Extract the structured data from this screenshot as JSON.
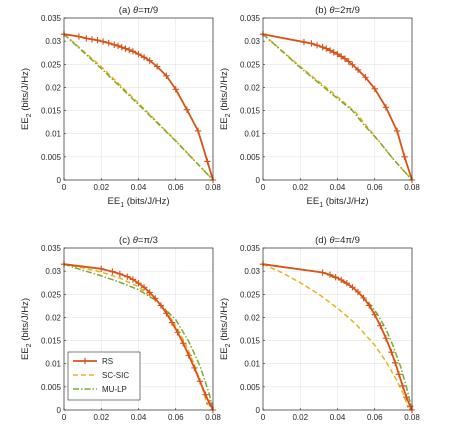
{
  "legend": {
    "entries": [
      {
        "name": "RS",
        "color": "#D95319",
        "dash": "solid",
        "marker": "plus"
      },
      {
        "name": "SC-SIC",
        "color": "#EDB120",
        "dash": "dashed",
        "marker": "none"
      },
      {
        "name": "MU-LP",
        "color": "#77AC30",
        "dash": "dashdot",
        "marker": "none"
      }
    ],
    "placement": "lower-left of panel (c)"
  },
  "chart_data": [
    {
      "type": "line",
      "title_prefix": "(a) ",
      "title_theta": "θ",
      "title_value": "=π/9",
      "xlabel_main": "EE",
      "xlabel_sub": "1",
      "xlabel_unit": " (bits/J/Hz)",
      "ylabel_main": "EE",
      "ylabel_sub": "2",
      "ylabel_unit": " (bits/J/Hz)",
      "xlim": [
        0,
        0.08
      ],
      "ylim": [
        0,
        0.035
      ],
      "xticks": [
        "0",
        "0.02",
        "0.04",
        "0.06",
        "0.08"
      ],
      "yticks": [
        "0",
        "0.005",
        "0.01",
        "0.015",
        "0.02",
        "0.025",
        "0.03",
        "0.035"
      ],
      "grid": true,
      "series": [
        {
          "name": "RS",
          "color": "#D95319",
          "dash": "solid",
          "marker": "plus",
          "x": [
            0.0,
            0.008,
            0.012,
            0.015,
            0.018,
            0.021,
            0.024,
            0.027,
            0.029,
            0.031,
            0.033,
            0.035,
            0.037,
            0.04,
            0.043,
            0.046,
            0.05,
            0.055,
            0.06,
            0.066,
            0.072,
            0.077,
            0.08
          ],
          "y": [
            0.0315,
            0.031,
            0.0306,
            0.0304,
            0.0302,
            0.0299,
            0.0296,
            0.0292,
            0.029,
            0.0287,
            0.0284,
            0.0281,
            0.0278,
            0.0272,
            0.0265,
            0.0258,
            0.0245,
            0.0225,
            0.0196,
            0.0152,
            0.0106,
            0.004,
            0.0
          ]
        },
        {
          "name": "SC-SIC",
          "color": "#EDB120",
          "dash": "dashed",
          "marker": "none",
          "x": [
            0.0,
            0.02,
            0.04,
            0.06,
            0.08
          ],
          "y": [
            0.0315,
            0.0245,
            0.0166,
            0.0085,
            0.0
          ]
        },
        {
          "name": "MU-LP",
          "color": "#77AC30",
          "dash": "dashdot",
          "marker": "none",
          "x": [
            0.0,
            0.02,
            0.04,
            0.06,
            0.08
          ],
          "y": [
            0.0315,
            0.0241,
            0.0163,
            0.0084,
            0.0
          ]
        }
      ]
    },
    {
      "type": "line",
      "title_prefix": "(b) ",
      "title_theta": "θ",
      "title_value": "=2π/9",
      "xlabel_main": "EE",
      "xlabel_sub": "1",
      "xlabel_unit": " (bits/J/Hz)",
      "ylabel_main": "EE",
      "ylabel_sub": "2",
      "ylabel_unit": " (bits/J/Hz)",
      "xlim": [
        0,
        0.08
      ],
      "ylim": [
        0,
        0.035
      ],
      "xticks": [
        "0",
        "0.02",
        "0.04",
        "0.06",
        "0.08"
      ],
      "yticks": [
        "0",
        "0.005",
        "0.01",
        "0.015",
        "0.02",
        "0.025",
        "0.03",
        "0.035"
      ],
      "grid": true,
      "series": [
        {
          "name": "RS",
          "color": "#D95319",
          "dash": "solid",
          "marker": "plus",
          "x": [
            0.0,
            0.022,
            0.026,
            0.029,
            0.032,
            0.034,
            0.036,
            0.038,
            0.04,
            0.042,
            0.044,
            0.046,
            0.048,
            0.051,
            0.055,
            0.06,
            0.066,
            0.072,
            0.076,
            0.08
          ],
          "y": [
            0.0315,
            0.0298,
            0.0295,
            0.0291,
            0.0287,
            0.0284,
            0.028,
            0.0276,
            0.0272,
            0.0267,
            0.0262,
            0.0256,
            0.0249,
            0.0238,
            0.0222,
            0.0197,
            0.0157,
            0.0106,
            0.005,
            0.0
          ]
        },
        {
          "name": "SC-SIC",
          "color": "#EDB120",
          "dash": "dashed",
          "marker": "none",
          "x": [
            0.0,
            0.02,
            0.04,
            0.05,
            0.06,
            0.07,
            0.08
          ],
          "y": [
            0.0315,
            0.0245,
            0.018,
            0.0145,
            0.0095,
            0.0045,
            0.0
          ]
        },
        {
          "name": "MU-LP",
          "color": "#77AC30",
          "dash": "dashdot",
          "marker": "none",
          "x": [
            0.0,
            0.02,
            0.04,
            0.048,
            0.054,
            0.062,
            0.07,
            0.08
          ],
          "y": [
            0.0315,
            0.0243,
            0.0176,
            0.015,
            0.012,
            0.0085,
            0.0045,
            0.0
          ]
        }
      ]
    },
    {
      "type": "line",
      "title_prefix": "(c) ",
      "title_theta": "θ",
      "title_value": "=π/3",
      "xlabel_main": "EE",
      "xlabel_sub": "1",
      "xlabel_unit": " (bits/J/Hz)",
      "ylabel_main": "EE",
      "ylabel_sub": "2",
      "ylabel_unit": " (bits/J/Hz)",
      "xlim": [
        0,
        0.08
      ],
      "ylim": [
        0,
        0.035
      ],
      "xticks": [
        "0",
        "0.02",
        "0.04",
        "0.06",
        "0.08"
      ],
      "yticks": [
        "0",
        "0.005",
        "0.01",
        "0.015",
        "0.02",
        "0.025",
        "0.03",
        "0.035"
      ],
      "grid": true,
      "series": [
        {
          "name": "RS",
          "color": "#D95319",
          "dash": "solid",
          "marker": "plus",
          "x": [
            0.0,
            0.02,
            0.026,
            0.03,
            0.034,
            0.037,
            0.04,
            0.043,
            0.046,
            0.049,
            0.052,
            0.055,
            0.058,
            0.061,
            0.064,
            0.067,
            0.07,
            0.073,
            0.076,
            0.078,
            0.08
          ],
          "y": [
            0.0315,
            0.0305,
            0.0299,
            0.0294,
            0.0288,
            0.0282,
            0.0274,
            0.0265,
            0.0254,
            0.0241,
            0.0226,
            0.0209,
            0.0189,
            0.0168,
            0.0144,
            0.0118,
            0.0091,
            0.0062,
            0.0033,
            0.0015,
            0.0
          ]
        },
        {
          "name": "SC-SIC",
          "color": "#EDB120",
          "dash": "dashed",
          "marker": "none",
          "x": [
            0.0,
            0.01,
            0.02,
            0.03,
            0.04,
            0.05,
            0.055,
            0.06,
            0.065,
            0.07,
            0.074,
            0.077
          ],
          "y": [
            0.0315,
            0.0307,
            0.0298,
            0.0285,
            0.0266,
            0.0235,
            0.0212,
            0.0182,
            0.0145,
            0.0098,
            0.0052,
            0.001
          ]
        },
        {
          "name": "MU-LP",
          "color": "#77AC30",
          "dash": "dashdot",
          "marker": "none",
          "x": [
            0.0,
            0.01,
            0.02,
            0.03,
            0.04,
            0.05,
            0.06,
            0.067,
            0.073,
            0.078,
            0.08
          ],
          "y": [
            0.0315,
            0.0302,
            0.029,
            0.0276,
            0.026,
            0.0235,
            0.0195,
            0.0148,
            0.0095,
            0.0035,
            0.0
          ]
        }
      ]
    },
    {
      "type": "line",
      "title_prefix": "(d) ",
      "title_theta": "θ",
      "title_value": "=4π/9",
      "xlabel_main": "EE",
      "xlabel_sub": "1",
      "xlabel_unit": " (bits/J/Hz)",
      "ylabel_main": "EE",
      "ylabel_sub": "2",
      "ylabel_unit": " (bits/J/Hz)",
      "xlim": [
        0,
        0.08
      ],
      "ylim": [
        0,
        0.035
      ],
      "xticks": [
        "0",
        "0.02",
        "0.04",
        "0.06",
        "0.08"
      ],
      "yticks": [
        "0",
        "0.005",
        "0.01",
        "0.015",
        "0.02",
        "0.025",
        "0.03",
        "0.035"
      ],
      "grid": true,
      "series": [
        {
          "name": "RS",
          "color": "#D95319",
          "dash": "solid",
          "marker": "plus",
          "x": [
            0.0,
            0.032,
            0.036,
            0.039,
            0.042,
            0.045,
            0.048,
            0.051,
            0.054,
            0.057,
            0.06,
            0.063,
            0.066,
            0.069,
            0.071,
            0.073,
            0.075,
            0.077,
            0.079,
            0.08
          ],
          "y": [
            0.0315,
            0.0297,
            0.0292,
            0.0287,
            0.0281,
            0.0274,
            0.0265,
            0.0255,
            0.0242,
            0.0226,
            0.0206,
            0.0182,
            0.0155,
            0.0125,
            0.0102,
            0.0077,
            0.0052,
            0.0028,
            0.0008,
            0.0
          ]
        },
        {
          "name": "SC-SIC",
          "color": "#EDB120",
          "dash": "dashed",
          "marker": "none",
          "x": [
            0.0,
            0.01,
            0.02,
            0.03,
            0.04,
            0.05,
            0.06,
            0.066,
            0.071,
            0.075,
            0.078
          ],
          "y": [
            0.0315,
            0.0297,
            0.0275,
            0.025,
            0.022,
            0.0185,
            0.014,
            0.0105,
            0.007,
            0.0038,
            0.0005
          ]
        },
        {
          "name": "MU-LP",
          "color": "#77AC30",
          "dash": "dashdot",
          "marker": "none",
          "x": [
            0.0,
            0.032,
            0.04,
            0.048,
            0.055,
            0.061,
            0.066,
            0.07,
            0.074,
            0.077,
            0.08
          ],
          "y": [
            0.0315,
            0.0297,
            0.0283,
            0.0265,
            0.024,
            0.021,
            0.0175,
            0.0137,
            0.0092,
            0.005,
            0.0
          ]
        }
      ]
    }
  ]
}
